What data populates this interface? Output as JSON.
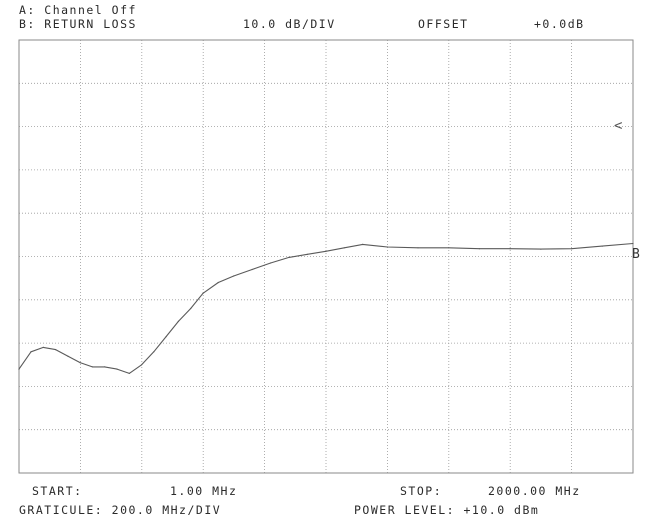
{
  "header": {
    "channel_a": "A: Channel Off",
    "channel_b_measurement": "B: RETURN LOSS",
    "scale": "10.0 dB/DIV",
    "offset_label": "OFFSET",
    "offset_value": "+0.0dB"
  },
  "footer": {
    "start_label": "START:",
    "start_value": "1.00 MHz",
    "stop_label": "STOP:",
    "stop_value": "2000.00 MHz",
    "graticule": "GRATICULE: 200.0 MHz/DIV",
    "power_level": "POWER LEVEL: +10.0 dBm"
  },
  "markers": {
    "reference_marker": "<",
    "trace_marker": "B"
  },
  "colors": {
    "trace": "#5a5a5a",
    "grid": "#9a9a9a",
    "text": "#2a2a2a",
    "background": "#ffffff"
  },
  "chart_data": {
    "type": "line",
    "title": "",
    "xlabel": "",
    "ylabel": "",
    "xlim": [
      1,
      2000
    ],
    "grid_divisions": {
      "x": 10,
      "y": 10
    },
    "x_units": "MHz",
    "y_units": "divisions below top graticule",
    "series": [
      {
        "x": [
          1,
          40,
          80,
          120,
          160,
          200,
          240,
          280,
          320,
          360,
          400,
          440,
          480,
          520,
          560,
          600,
          650,
          700,
          760,
          820,
          880,
          940,
          1000,
          1060,
          1120,
          1200,
          1300,
          1400,
          1500,
          1600,
          1700,
          1800,
          1900,
          2000
        ],
        "values": [
          7.6,
          7.2,
          7.1,
          7.15,
          7.3,
          7.45,
          7.55,
          7.55,
          7.6,
          7.7,
          7.5,
          7.2,
          6.85,
          6.5,
          6.2,
          5.85,
          5.6,
          5.45,
          5.3,
          5.15,
          5.02,
          4.95,
          4.88,
          4.8,
          4.72,
          4.78,
          4.8,
          4.8,
          4.82,
          4.82,
          4.83,
          4.82,
          4.76,
          4.7
        ]
      }
    ]
  }
}
